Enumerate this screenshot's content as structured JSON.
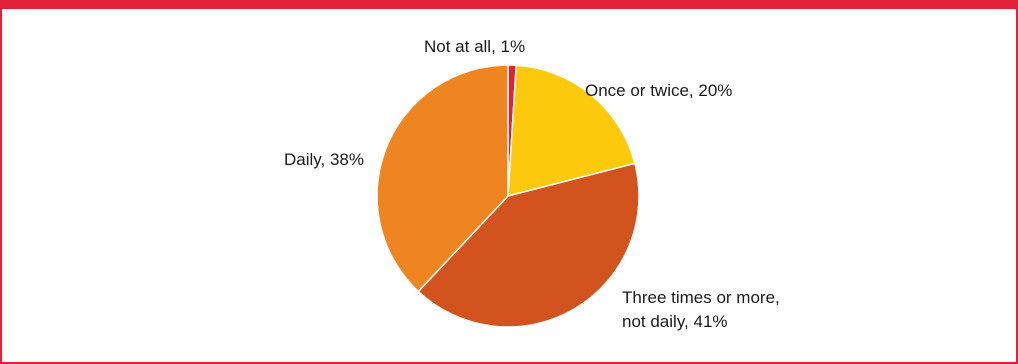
{
  "chart_data": {
    "type": "pie",
    "title": "",
    "start_angle_deg": 0,
    "direction": "clockwise",
    "slices": [
      {
        "label": "Not at all",
        "value": 1,
        "display": [
          "Not at all, 1%"
        ],
        "color": "#e2203a"
      },
      {
        "label": "Once or twice",
        "value": 20,
        "display": [
          "Once or twice, 20%"
        ],
        "color": "#fdc90c"
      },
      {
        "label": "Three times or more, not daily",
        "value": 41,
        "display": [
          "Three times or more,",
          "not daily, 41%"
        ],
        "color": "#d2531e"
      },
      {
        "label": "Daily",
        "value": 38,
        "display": [
          "Daily, 38%"
        ],
        "color": "#ee8521"
      }
    ]
  },
  "colors": {
    "frame": "#e2203a",
    "slice_border": "#ffffff",
    "text": "#1a1a1a"
  }
}
